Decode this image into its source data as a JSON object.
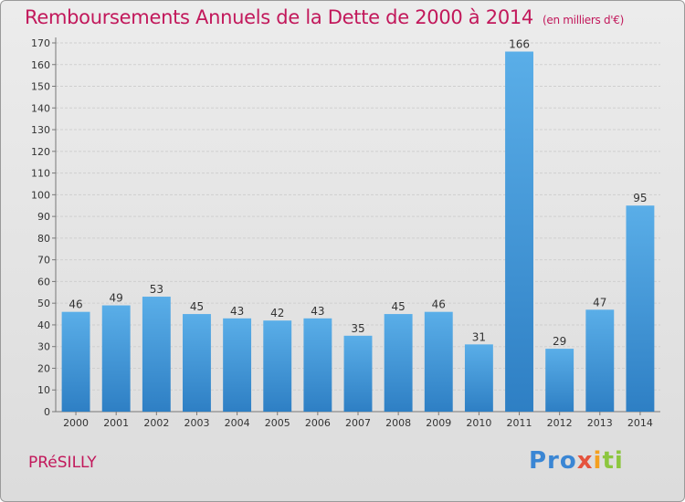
{
  "title": "Remboursements Annuels de la Dette de 2000 à 2014",
  "unit": "(en milliers d'€)",
  "commune": "PRéSILLY",
  "logo": {
    "p": "Pro",
    "x": "x",
    "i": "i",
    "ti": "ti"
  },
  "colors": {
    "accent": "#c2185b",
    "bar_top": "#5aaee8",
    "bar_bottom": "#2e7fc4"
  },
  "chart_data": {
    "type": "bar",
    "categories": [
      "2000",
      "2001",
      "2002",
      "2003",
      "2004",
      "2005",
      "2006",
      "2007",
      "2008",
      "2009",
      "2010",
      "2011",
      "2012",
      "2013",
      "2014"
    ],
    "values": [
      46,
      49,
      53,
      45,
      43,
      42,
      43,
      35,
      45,
      46,
      31,
      166,
      29,
      47,
      95
    ],
    "ylim": [
      0,
      170
    ],
    "yticks": [
      0,
      10,
      20,
      30,
      40,
      50,
      60,
      70,
      80,
      90,
      100,
      110,
      120,
      130,
      140,
      150,
      160,
      170
    ],
    "grid": true
  }
}
